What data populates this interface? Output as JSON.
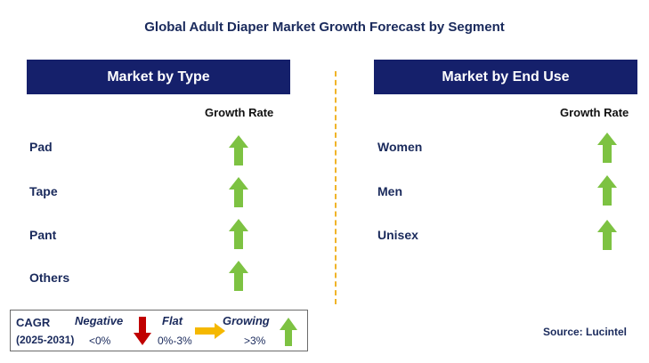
{
  "title": "Global Adult Diaper Market Growth Forecast by Segment",
  "left_panel": {
    "header": "Market by Type",
    "column_label": "Growth Rate",
    "rows": [
      {
        "label": "Pad",
        "trend": "growing"
      },
      {
        "label": "Tape",
        "trend": "growing"
      },
      {
        "label": "Pant",
        "trend": "growing"
      },
      {
        "label": "Others",
        "trend": "growing"
      }
    ]
  },
  "right_panel": {
    "header": "Market by End Use",
    "column_label": "Growth Rate",
    "rows": [
      {
        "label": "Women",
        "trend": "growing"
      },
      {
        "label": "Men",
        "trend": "growing"
      },
      {
        "label": "Unisex",
        "trend": "growing"
      }
    ]
  },
  "legend": {
    "cagr_label": "CAGR",
    "period": "(2025-2031)",
    "negative_label": "Negative",
    "negative_range": "<0%",
    "flat_label": "Flat",
    "flat_range": "0%-3%",
    "growing_label": "Growing",
    "growing_range": ">3%"
  },
  "source": "Source: Lucintel",
  "colors": {
    "header_bg": "#15206b",
    "growing": "#7dc242",
    "negative": "#c00000",
    "flat": "#f5b800",
    "divider": "#f0b429"
  }
}
